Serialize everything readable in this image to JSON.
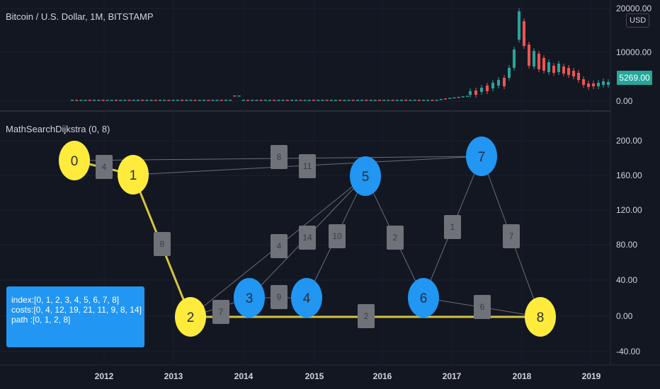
{
  "header": {
    "symbol_title": "Bitcoin / U.S. Dollar, 1M, BITSTAMP",
    "currency_button": "USD",
    "last_price": "5269.00",
    "indicator_title": "MathSearchDijkstra (0, 8)"
  },
  "colors": {
    "background": "#131722",
    "up_candle": "#26a69a",
    "down_candle": "#ef5350",
    "path_node": "#ffeb3b",
    "other_node": "#2196f3",
    "edge_label": "#70727a",
    "path_line": "#d4c341",
    "info_box": "#2196f3"
  },
  "price_axis": {
    "labels": [
      "20000.00",
      "10000.00",
      "0.00"
    ]
  },
  "indicator_axis": {
    "labels": [
      "200.00",
      "160.00",
      "120.00",
      "80.00",
      "40.00",
      "0.00",
      "-40.00"
    ]
  },
  "time_axis": {
    "labels": [
      "2012",
      "2013",
      "2014",
      "2015",
      "2016",
      "2017",
      "2018",
      "2019"
    ]
  },
  "graph": {
    "nodes": [
      {
        "id": "0",
        "on_path": true
      },
      {
        "id": "1",
        "on_path": true
      },
      {
        "id": "2",
        "on_path": true
      },
      {
        "id": "3",
        "on_path": false
      },
      {
        "id": "4",
        "on_path": false
      },
      {
        "id": "5",
        "on_path": false
      },
      {
        "id": "6",
        "on_path": false
      },
      {
        "id": "7",
        "on_path": false
      },
      {
        "id": "8",
        "on_path": true
      }
    ],
    "edges": [
      {
        "from": "0",
        "to": "1",
        "weight": "4",
        "on_path": true
      },
      {
        "from": "0",
        "to": "7",
        "weight": "8",
        "on_path": false
      },
      {
        "from": "1",
        "to": "2",
        "weight": "8",
        "on_path": true
      },
      {
        "from": "1",
        "to": "7",
        "weight": "11",
        "on_path": false
      },
      {
        "from": "2",
        "to": "3",
        "weight": "7",
        "on_path": false
      },
      {
        "from": "2",
        "to": "5",
        "weight": "4",
        "on_path": false
      },
      {
        "from": "2",
        "to": "8",
        "weight": "2",
        "on_path": true
      },
      {
        "from": "3",
        "to": "4",
        "weight": "9",
        "on_path": false
      },
      {
        "from": "3",
        "to": "5",
        "weight": "14",
        "on_path": false
      },
      {
        "from": "4",
        "to": "5",
        "weight": "10",
        "on_path": false
      },
      {
        "from": "5",
        "to": "6",
        "weight": "2",
        "on_path": false
      },
      {
        "from": "6",
        "to": "7",
        "weight": "1",
        "on_path": false
      },
      {
        "from": "6",
        "to": "8",
        "weight": "6",
        "on_path": false
      },
      {
        "from": "7",
        "to": "8",
        "weight": "7",
        "on_path": false
      }
    ]
  },
  "result": {
    "index_line": "index:[0, 1, 2, 3, 4, 5, 6, 7, 8]",
    "costs_line": "costs:[0, 4, 12, 19, 21, 11, 9, 8, 14]",
    "path_line": "path :[0, 1, 2, 8]"
  }
}
